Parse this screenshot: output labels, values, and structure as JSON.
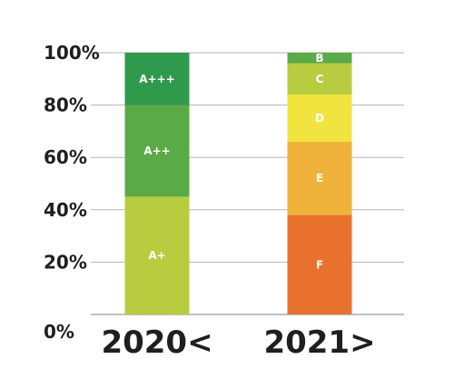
{
  "chart_data": {
    "type": "bar",
    "stacked": true,
    "categories": [
      "2020<",
      "2021>"
    ],
    "y_ticks": [
      "0%",
      "20%",
      "40%",
      "60%",
      "80%",
      "100%"
    ],
    "ylim": [
      0,
      100
    ],
    "grid": true,
    "legend": "none",
    "bars": [
      {
        "category": "2020<",
        "segments": [
          {
            "label": "A+",
            "value": 45,
            "color": "#b8cc40"
          },
          {
            "label": "A++",
            "value": 35,
            "color": "#5aaa47"
          },
          {
            "label": "A+++",
            "value": 20,
            "color": "#2f9a4c"
          }
        ]
      },
      {
        "category": "2021>",
        "segments": [
          {
            "label": "F",
            "value": 38,
            "color": "#e8712d"
          },
          {
            "label": "E",
            "value": 28,
            "color": "#efb23a"
          },
          {
            "label": "D",
            "value": 18,
            "color": "#f2e43e"
          },
          {
            "label": "C",
            "value": 12,
            "color": "#b8cc40"
          },
          {
            "label": "B",
            "value": 4,
            "color": "#5aaa47"
          }
        ]
      }
    ]
  }
}
